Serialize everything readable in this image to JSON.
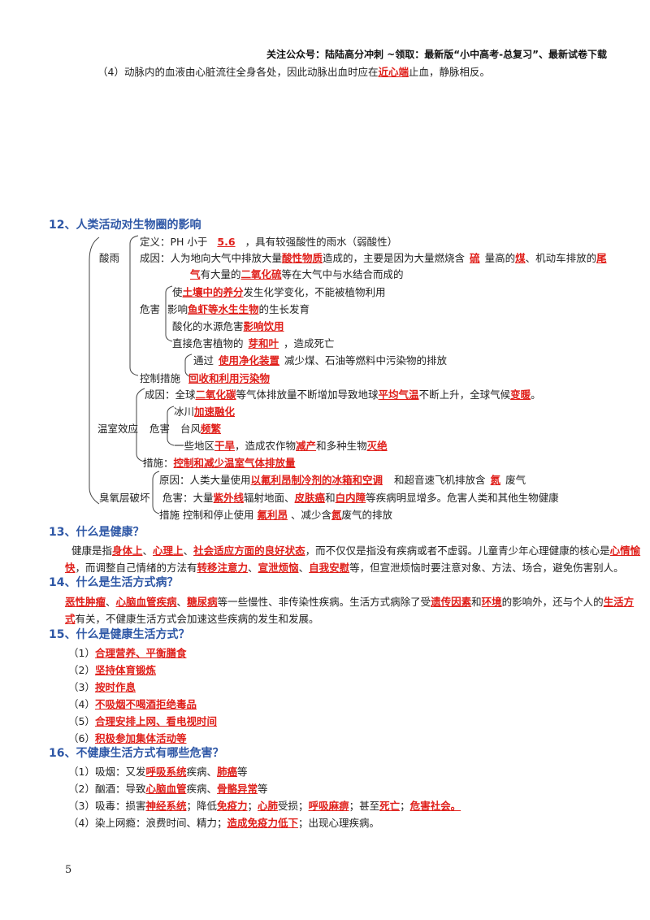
{
  "header": {
    "note": "关注公众号：陆陆高分冲刺 ~领取：最新版“小中高考-总复习”、最新试卷下载"
  },
  "intro": {
    "pre": "（4）动脉内的血液由心脏流往全身各处，因此动脉出血时应在",
    "ans": "近心端",
    "post": "止血，静脉相反。"
  },
  "s12": {
    "title": "12、人类活动对生物圈的影响",
    "acid": {
      "label": "酸雨",
      "def_pre": "定义：PH 小于",
      "def_ans": "5.6",
      "def_post": "，具有较强酸性的雨水（弱酸性）",
      "cause_pre": "成因：人为地向大气中排放大量",
      "cause_a1": "酸性物质",
      "cause_m1": "造成的，主要是因为大量燃烧含",
      "cause_a2": "硫",
      "cause_m2": "量高的",
      "cause_a3": "煤",
      "cause_m3": "、机动车排放的",
      "cause_a4": "尾",
      "cause2_a": "气",
      "cause2_m": "有大量的",
      "cause2_ans": "二氧化硫",
      "cause2_post": "等在大气中与水结合而成的",
      "harm_label": "危害",
      "h1_pre": "使",
      "h1_ans": "土壤中的养分",
      "h1_post": "发生化学变化，不能被植物利用",
      "h2_pre": "影响",
      "h2_ans": "鱼虾等水生生物",
      "h2_post": "的生长发育",
      "h3_pre": "酸化的水源危害",
      "h3_ans": "影响饮用",
      "h4_pre": "直接危害植物的",
      "h4_ans": "芽和叶",
      "h4_post": "，造成死亡",
      "ctrl_label": "控制措施",
      "c1_pre": "通过",
      "c1_ans": "使用净化装置",
      "c1_post": "减少煤、石油等燃料中污染物的排放",
      "c2_ans": "回收和利用污染物"
    },
    "green": {
      "label": "温室效应",
      "cause_pre": "成因：全球",
      "cause_a1": "二氧化碳",
      "cause_m1": "等气体排放量不断增加导致地球",
      "cause_a2": "平均气温",
      "cause_m2": "不断上升，全球气候",
      "cause_a3": "变暖",
      "cause_post": "。",
      "harm_label": "危害",
      "h1_pre": "冰川",
      "h1_ans": "加速融化",
      "h2_pre": "台风",
      "h2_ans": "频繁",
      "h3_pre": "一些地区",
      "h3_a1": "干旱",
      "h3_m1": "，造成农作物",
      "h3_a2": "减产",
      "h3_m2": "和多种生物",
      "h3_a3": "灭绝",
      "meas_pre": "措施：",
      "meas_ans": "控制和减少温室气体排放量"
    },
    "ozone": {
      "label": "臭氧层破坏",
      "c_pre": "原因：人类大量使用",
      "c_ans": "以氟利昂制冷剂的冰箱和空调",
      "c_m": "和超音速飞机排放含",
      "c_a2": "氮",
      "c_post": "废气",
      "h_pre": "危害：大量",
      "h_a1": "紫外线",
      "h_m1": "辐射地面、",
      "h_a2": "皮肤癌",
      "h_m2": "和",
      "h_a3": "白内障",
      "h_post": "等疾病明显增多。危害人类和其他生物健康",
      "m_pre": "措施 控制和停止使用",
      "m_a1": "氟利昂",
      "m_m": "、减少含",
      "m_a2": "氮",
      "m_post": "废气的排放"
    }
  },
  "s13": {
    "title": "13、什么是健康？",
    "l1_pre": "健康是指",
    "a1": "身体上",
    "s1": "、",
    "a2": "心理上",
    "s2": "、",
    "a3": "社会适应方面的良好状态",
    "l1_m": "，而不仅仅是指没有疾病或者不虚弱。儿童青少年心理健康的核心是",
    "a4": "心情愉",
    "l2_a": "快",
    "l2_m1": "，而调整自己情绪的方法有",
    "a5": "转移注意力",
    "l2_s1": "、",
    "a6": "宣泄烦恼",
    "l2_s2": "、",
    "a7": "自我安慰",
    "l2_post": "等，但宣泄烦恼时要注意对象、方法、场合，避免伤害别人。"
  },
  "s14": {
    "title": "14、什么是生活方式病？",
    "a1": "恶性肿瘤",
    "s1": "、",
    "a2": "心脑血管疾病",
    "s2": "、",
    "a3": "糖尿病",
    "l1_m": "等一些慢性、非传染性疾病。生活方式病除了受",
    "a4": "遗传因素",
    "l1_m2": "和",
    "a5": "环境",
    "l1_m3": "的影响外，还与个人的",
    "a6": "生活方",
    "l2_a": "式",
    "l2_post": "有关，不健康生活方式会加速这些疾病的发生和发展。"
  },
  "s15": {
    "title": "15、什么是健康生活方式？",
    "items": [
      {
        "num": "（1）",
        "ans": "合理营养、平衡膳食"
      },
      {
        "num": "（2）",
        "ans": "坚持体育锻炼"
      },
      {
        "num": "（3）",
        "ans": "按时作息"
      },
      {
        "num": "（4）",
        "ans": "不吸烟不喝酒拒绝毒品"
      },
      {
        "num": "（5）",
        "ans": "合理安排上网、看电视时间"
      },
      {
        "num": "（6）",
        "ans": "积极参加集体活动等"
      }
    ]
  },
  "s16": {
    "title": "16、不健康生活方式有哪些危害？",
    "l1_pre": "（1）吸烟：又发",
    "l1_a1": "呼吸系统",
    "l1_m": "疾病、",
    "l1_a2": "肺癌",
    "l1_post": "等",
    "l2_pre": "（2）酗酒：导致",
    "l2_a1": "心脑血管",
    "l2_m": "疾病、",
    "l2_a2": "骨骼异常",
    "l2_post": "等",
    "l3_pre": "（3）吸毒：损害",
    "l3_a1": "神经系统",
    "l3_m1": "；降低",
    "l3_a2": "免疫力",
    "l3_m2": "；",
    "l3_a3": "心肺",
    "l3_m3": "受损；",
    "l3_a4": "呼吸麻痹",
    "l3_m4": "；甚至",
    "l3_a5": "死亡",
    "l3_m5": "；",
    "l3_a6": "危害社会。",
    "l4_pre": "（4）染上网瘾：浪费时间、精力；",
    "l4_ans": "造成免疫力低下",
    "l4_post": "；出现心理疾病。"
  },
  "footer": {
    "page": "5"
  }
}
